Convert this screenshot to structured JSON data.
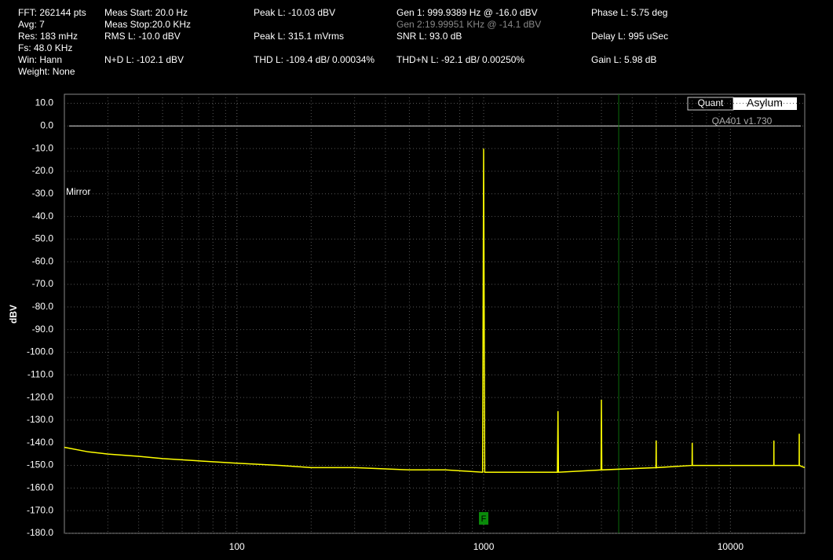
{
  "header": [
    "FFT: 262144 pts",
    "Avg: 7",
    "Res: 183 mHz",
    "Fs: 48.0 KHz",
    "Win: Hann",
    "Weight: None",
    "Meas Start: 20.0 Hz",
    "Meas Stop:20.0 KHz",
    "RMS L: -10.0 dBV",
    "N+D L: -102.1 dBV",
    "Peak L: -10.03 dBV",
    "Peak L: 315.1 mVrms",
    "THD L: -109.4 dB/ 0.00034%",
    "Gen 1: 999.9389 Hz @ -16.0  dBV",
    "Gen 2:19.99951 KHz @ -14.1  dBV",
    "SNR L: 93.0 dB",
    "THD+N L: -92.1 dB/ 0.00250%",
    "Phase L: 5.75 deg",
    "Delay L: 995 uSec",
    "Gain L: 5.98 dB"
  ],
  "chart_data": {
    "type": "line",
    "ylabel": "dBV",
    "annotation": "Mirror",
    "logo": [
      "Quant",
      "Asylum"
    ],
    "version": "QA401 v1.730",
    "xscale": "log",
    "xlim": [
      20,
      20000
    ],
    "ylim": [
      -180,
      14
    ],
    "grid": true,
    "minor_grid": true,
    "xticks": [
      100,
      1000,
      10000
    ],
    "yticks": [
      {
        "value": 10,
        "label": "10.0"
      },
      {
        "value": 0,
        "label": "0.0"
      },
      {
        "value": -10,
        "label": "-10.0"
      },
      {
        "value": -20,
        "label": "-20.0"
      },
      {
        "value": -30,
        "label": "-30.0"
      },
      {
        "value": -40,
        "label": "-40.0"
      },
      {
        "value": -50,
        "label": "-50.0"
      },
      {
        "value": -60,
        "label": "-60.0"
      },
      {
        "value": -70,
        "label": "-70.0"
      },
      {
        "value": -80,
        "label": "-80.0"
      },
      {
        "value": -90,
        "label": "-90.0"
      },
      {
        "value": -100,
        "label": "-100.0"
      },
      {
        "value": -110,
        "label": "-110.0"
      },
      {
        "value": -120,
        "label": "-120.0"
      },
      {
        "value": -130,
        "label": "-130.0"
      },
      {
        "value": -140,
        "label": "-140.0"
      },
      {
        "value": -150,
        "label": "-150.0"
      },
      {
        "value": -160,
        "label": "-160.0"
      },
      {
        "value": -170,
        "label": "-170.0"
      },
      {
        "value": -180,
        "label": "-180.0"
      }
    ],
    "ref_level": 0,
    "cursor_x": 3525,
    "marker": {
      "x": 1000,
      "label": "F"
    },
    "series": [
      {
        "color": "#ffff00",
        "x": [
          20,
          25,
          30,
          40,
          50,
          70,
          100,
          150,
          200,
          300,
          500,
          700,
          990,
          1000,
          1010,
          1500,
          1990,
          2000,
          2010,
          2990,
          3000,
          3010,
          4990,
          5000,
          5010,
          6990,
          7000,
          7010,
          10000,
          14990,
          15000,
          15010,
          18990,
          19000,
          19010,
          20000
        ],
        "values": [
          -142,
          -144,
          -145,
          -146,
          -147,
          -148,
          -149,
          -150,
          -151,
          -151,
          -152,
          -152,
          -153,
          -10,
          -153,
          -153,
          -153,
          -126,
          -153,
          -152,
          -121,
          -152,
          -151,
          -139,
          -151,
          -150,
          -140,
          -150,
          -150,
          -150,
          -139,
          -150,
          -150,
          -136,
          -150,
          -151
        ]
      }
    ]
  }
}
